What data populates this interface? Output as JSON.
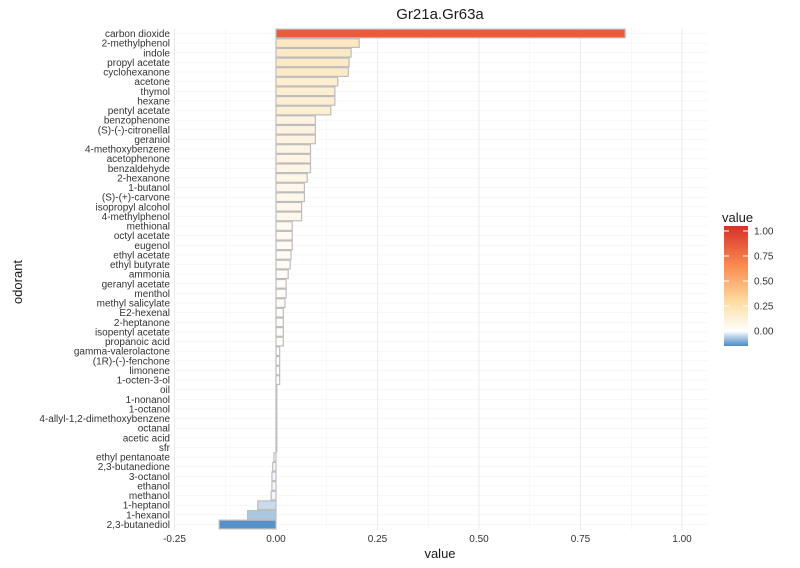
{
  "chart_data": {
    "type": "bar",
    "orientation": "horizontal",
    "title": "Gr21a.Gr63a",
    "xlabel": "value",
    "ylabel": "odorant",
    "xlim": [
      -0.25,
      1.05
    ],
    "x_ticks": [
      "-0.25",
      "0.00",
      "0.25",
      "0.50",
      "0.75",
      "1.00"
    ],
    "grid": true,
    "legend": {
      "title": "value",
      "position": "right",
      "labels": [
        "1.00",
        "0.75",
        "0.50",
        "0.25",
        "0.00"
      ],
      "range": [
        -0.15,
        1.05
      ]
    },
    "colors": {
      "low": "#4a8ac4",
      "mid": "#ffffff",
      "high": "#d73027",
      "bar_outline": "#bdbdbd",
      "grid": "#ebebeb"
    },
    "categories": [
      "carbon dioxide",
      "2-methylphenol",
      "indole",
      "propyl acetate",
      "cyclohexanone",
      "acetone",
      "thymol",
      "hexane",
      "pentyl acetate",
      "benzophenone",
      "(S)-(-)-citronellal",
      "geraniol",
      "4-methoxybenzene",
      "acetophenone",
      "benzaldehyde",
      "2-hexanone",
      "1-butanol",
      "(S)-(+)-carvone",
      "isopropyl alcohol",
      "4-methylphenol",
      "methional",
      "octyl acetate",
      "eugenol",
      "ethyl acetate",
      "ethyl butyrate",
      "ammonia",
      "geranyl acetate",
      "menthol",
      "methyl salicylate",
      "E2-hexenal",
      "2-heptanone",
      "isopentyl acetate",
      "propanoic acid",
      "gamma-valerolactone",
      "(1R)-(-)-fenchone",
      "limonene",
      "1-octen-3-ol",
      "oil",
      "1-nonanol",
      "1-octanol",
      "4-allyl-1,2-dimethoxybenzene",
      "octanal",
      "acetic acid",
      "sfr",
      "ethyl pentanoate",
      "2,3-butanedione",
      "3-octanol",
      "ethanol",
      "methanol",
      "1-heptanol",
      "1-hexanol",
      "2,3-butanediol"
    ],
    "values": [
      0.86,
      0.205,
      0.185,
      0.18,
      0.178,
      0.152,
      0.145,
      0.145,
      0.135,
      0.097,
      0.097,
      0.097,
      0.085,
      0.085,
      0.085,
      0.077,
      0.07,
      0.07,
      0.063,
      0.063,
      0.04,
      0.04,
      0.04,
      0.037,
      0.035,
      0.03,
      0.025,
      0.025,
      0.022,
      0.018,
      0.018,
      0.018,
      0.018,
      0.009,
      0.009,
      0.009,
      0.009,
      0.0,
      0.0,
      0.0,
      0.0,
      0.0,
      0.0,
      0.0,
      -0.005,
      -0.008,
      -0.01,
      -0.01,
      -0.012,
      -0.045,
      -0.07,
      -0.14
    ]
  }
}
